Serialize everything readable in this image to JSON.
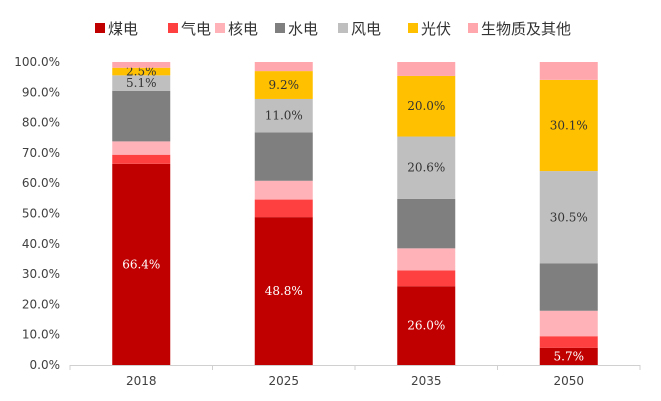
{
  "chart_data": {
    "type": "bar",
    "stacked": true,
    "percent_stacked": true,
    "title": "",
    "xlabel": "",
    "ylabel": "",
    "ylim": [
      0,
      100
    ],
    "y_ticks": [
      "0.0%",
      "10.0%",
      "20.0%",
      "30.0%",
      "40.0%",
      "50.0%",
      "60.0%",
      "70.0%",
      "80.0%",
      "90.0%",
      "100.0%"
    ],
    "categories": [
      "2018",
      "2025",
      "2035",
      "2050"
    ],
    "legend_position": "top",
    "grid": false,
    "series": [
      {
        "name": "煤电",
        "color": "#C00000",
        "values": [
          66.4,
          48.8,
          26.0,
          5.7
        ],
        "labels": [
          "66.4%",
          "48.8%",
          "26.0%",
          "5.7%"
        ],
        "label_color": "#ffffff"
      },
      {
        "name": "气电",
        "color": "#FF4040",
        "values": [
          3.0,
          5.8,
          5.2,
          3.8
        ],
        "labels": [
          null,
          null,
          null,
          null
        ],
        "label_color": "#ffffff"
      },
      {
        "name": "核电",
        "color": "#FFB3B8",
        "values": [
          4.4,
          6.2,
          7.3,
          8.4
        ],
        "labels": [
          null,
          null,
          null,
          null
        ],
        "label_color": "#333333"
      },
      {
        "name": "水电",
        "color": "#7F7F7F",
        "values": [
          16.7,
          16.0,
          16.3,
          15.6
        ],
        "labels": [
          null,
          null,
          null,
          null
        ],
        "label_color": "#ffffff"
      },
      {
        "name": "风电",
        "color": "#BFBFBF",
        "values": [
          5.1,
          11.0,
          20.6,
          30.5
        ],
        "labels": [
          "5.1%",
          "11.0%",
          "20.6%",
          "30.5%"
        ],
        "label_color": "#333333"
      },
      {
        "name": "光伏",
        "color": "#FFC000",
        "values": [
          2.5,
          9.2,
          20.0,
          30.1
        ],
        "labels": [
          "2.5%",
          "9.2%",
          "20.0%",
          "30.1%"
        ],
        "label_color": "#333333"
      },
      {
        "name": "生物质及其他",
        "color": "#FFA7AD",
        "values": [
          1.9,
          3.0,
          4.6,
          5.9
        ],
        "labels": [
          null,
          null,
          null,
          null
        ],
        "label_color": "#333333"
      }
    ]
  }
}
